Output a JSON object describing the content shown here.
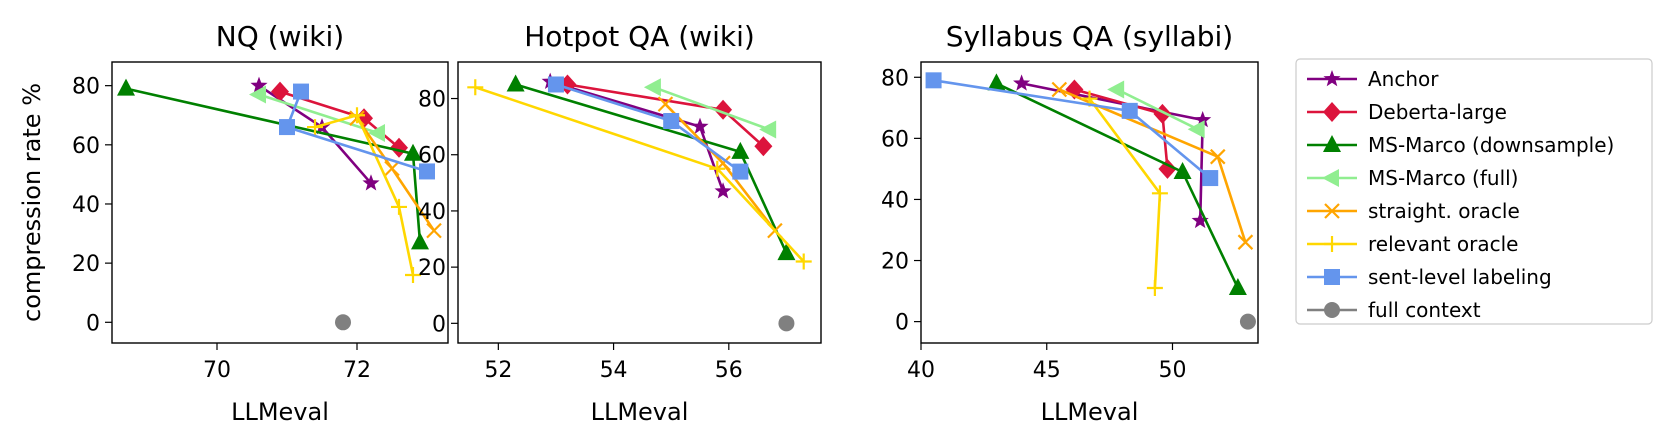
{
  "chart_data": [
    {
      "type": "line",
      "title": "NQ (wiki)",
      "xlabel": "LLMeval",
      "ylabel": "compression rate %",
      "xlim": [
        68.5,
        73.3
      ],
      "ylim": [
        -7,
        88
      ],
      "xticks": [
        70,
        72
      ],
      "yticks": [
        0,
        20,
        40,
        60,
        80
      ],
      "series": [
        {
          "name": "Anchor",
          "x": [
            70.6,
            71.5,
            72.2
          ],
          "y": [
            80,
            66,
            47
          ]
        },
        {
          "name": "Deberta-large",
          "x": [
            70.9,
            72.1,
            72.6
          ],
          "y": [
            78,
            69,
            59
          ]
        },
        {
          "name": "MS-Marco (downsample)",
          "x": [
            68.7,
            72.8,
            72.9
          ],
          "y": [
            79,
            57,
            27
          ]
        },
        {
          "name": "MS-Marco (full)",
          "x": [
            70.6,
            72.3
          ],
          "y": [
            77,
            64
          ]
        },
        {
          "name": "straight. oracle",
          "x": [
            72.0,
            72.5,
            73.1
          ],
          "y": [
            69,
            52,
            31
          ]
        },
        {
          "name": "relevant oracle",
          "x": [
            71.4,
            72.0,
            72.6,
            72.8
          ],
          "y": [
            66,
            70,
            39,
            16
          ]
        },
        {
          "name": "sent-level labeling",
          "x": [
            71.2,
            71.0,
            73.0
          ],
          "y": [
            78,
            66,
            51
          ]
        },
        {
          "name": "full context",
          "x": [
            71.8
          ],
          "y": [
            0
          ]
        }
      ]
    },
    {
      "type": "line",
      "title": "Hotpot QA (wiki)",
      "xlabel": "LLMeval",
      "ylabel": "",
      "xlim": [
        51.3,
        57.6
      ],
      "ylim": [
        -7,
        93
      ],
      "xticks": [
        52,
        54,
        56
      ],
      "yticks": [
        0,
        20,
        40,
        60,
        80
      ],
      "series": [
        {
          "name": "Anchor",
          "x": [
            52.9,
            55.5,
            55.9
          ],
          "y": [
            86,
            70,
            47
          ]
        },
        {
          "name": "Deberta-large",
          "x": [
            53.2,
            55.9,
            56.6
          ],
          "y": [
            85,
            76,
            63
          ]
        },
        {
          "name": "MS-Marco (downsample)",
          "x": [
            52.3,
            56.2,
            57.0
          ],
          "y": [
            85,
            61,
            25
          ]
        },
        {
          "name": "MS-Marco (full)",
          "x": [
            54.7,
            56.7
          ],
          "y": [
            84,
            69
          ]
        },
        {
          "name": "straight. oracle",
          "x": [
            54.9,
            55.9,
            56.8
          ],
          "y": [
            78,
            57,
            33
          ]
        },
        {
          "name": "relevant oracle",
          "x": [
            51.6,
            55.8,
            57.3
          ],
          "y": [
            84,
            55,
            22
          ]
        },
        {
          "name": "sent-level labeling",
          "x": [
            53.0,
            55.0,
            56.2
          ],
          "y": [
            85,
            72,
            54
          ]
        },
        {
          "name": "full context",
          "x": [
            57.0
          ],
          "y": [
            0
          ]
        }
      ]
    },
    {
      "type": "line",
      "title": "Syllabus QA (syllabi)",
      "xlabel": "LLMeval",
      "ylabel": "",
      "xlim": [
        40,
        53.4
      ],
      "ylim": [
        -7,
        85
      ],
      "xticks": [
        40,
        45,
        50
      ],
      "yticks": [
        0,
        20,
        40,
        60,
        80
      ],
      "series": [
        {
          "name": "Anchor",
          "x": [
            44.0,
            51.2,
            51.1
          ],
          "y": [
            78,
            66,
            33
          ]
        },
        {
          "name": "Deberta-large",
          "x": [
            46.1,
            49.6,
            49.8
          ],
          "y": [
            76,
            68,
            50
          ]
        },
        {
          "name": "MS-Marco (downsample)",
          "x": [
            43.0,
            50.4,
            52.6
          ],
          "y": [
            78,
            49,
            11
          ]
        },
        {
          "name": "MS-Marco (full)",
          "x": [
            47.8,
            51.0
          ],
          "y": [
            76,
            63
          ]
        },
        {
          "name": "straight. oracle",
          "x": [
            45.5,
            51.8,
            52.9
          ],
          "y": [
            76,
            54,
            26
          ]
        },
        {
          "name": "relevant oracle",
          "x": [
            46.7,
            49.5,
            49.3
          ],
          "y": [
            73,
            42,
            11
          ]
        },
        {
          "name": "sent-level labeling",
          "x": [
            40.5,
            48.3,
            51.5
          ],
          "y": [
            79,
            69,
            47
          ]
        },
        {
          "name": "full context",
          "x": [
            53.0
          ],
          "y": [
            0
          ]
        }
      ]
    }
  ],
  "legend": {
    "position": "right",
    "entries": [
      {
        "name": "Anchor",
        "label": "Anchor",
        "color": "#800080",
        "marker": "star"
      },
      {
        "name": "Deberta-large",
        "label": "Deberta-large",
        "color": "#dc143c",
        "marker": "diamond"
      },
      {
        "name": "MS-Marco (downsample)",
        "label": "MS-Marco (downsample)",
        "color": "#008000",
        "marker": "triangle-up"
      },
      {
        "name": "MS-Marco (full)",
        "label": "MS-Marco (full)",
        "color": "#90ee90",
        "marker": "triangle-left"
      },
      {
        "name": "straight. oracle",
        "label": "straight. oracle",
        "color": "#ffa500",
        "marker": "x"
      },
      {
        "name": "relevant oracle",
        "label": "relevant oracle",
        "color": "#ffd700",
        "marker": "plus"
      },
      {
        "name": "sent-level labeling",
        "label": "sent-level labeling",
        "color": "#6495ed",
        "marker": "square"
      },
      {
        "name": "full context",
        "label": "full context",
        "color": "#808080",
        "marker": "circle"
      }
    ]
  }
}
